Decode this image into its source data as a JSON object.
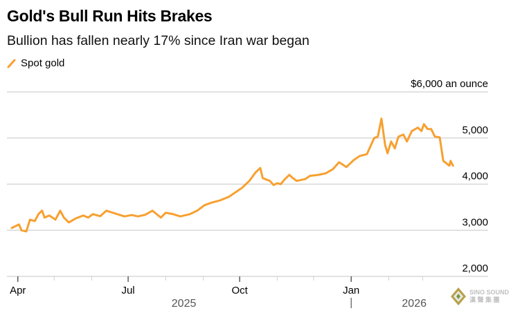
{
  "title": "Gold's Bull Run Hits Brakes",
  "subtitle": "Bullion has fallen nearly 17% since Iran war began",
  "watermark": {
    "line1": "SINO SOUND",
    "line2": "漢 聲 集 團"
  },
  "colors": {
    "series": "#f7a030",
    "grid": "#d0d0d0",
    "text": "#000000",
    "year_text": "#555555"
  },
  "chart_data": {
    "type": "line",
    "title": "Gold's Bull Run Hits Brakes",
    "subtitle": "Bullion has fallen nearly 17% since Iran war began",
    "xlabel": "",
    "ylabel": "$6,000 an ounce",
    "x_units": "days since 2025-04-01",
    "xlim": [
      -9,
      388
    ],
    "ylim": [
      2000,
      6000
    ],
    "grid": true,
    "legend": {
      "position": "top-left",
      "entries": [
        "Spot gold"
      ]
    },
    "y_ticks": [
      {
        "value": 2000,
        "label": "2,000"
      },
      {
        "value": 3000,
        "label": "3,000"
      },
      {
        "value": 4000,
        "label": "4,000"
      },
      {
        "value": 5000,
        "label": "5,000"
      },
      {
        "value": 6000,
        "label": "$6,000 an ounce"
      }
    ],
    "x_ticks": [
      {
        "value": 0,
        "label": "Apr"
      },
      {
        "value": 91,
        "label": "Jul"
      },
      {
        "value": 183,
        "label": "Oct"
      },
      {
        "value": 275,
        "label": "Jan"
      }
    ],
    "minor_x_ticks": [
      30,
      61,
      122,
      153,
      214,
      244,
      306,
      334
    ],
    "years": [
      {
        "label": "2025",
        "center": 137
      },
      {
        "label": "2026",
        "center": 327
      }
    ],
    "year_divider": 275,
    "series": [
      {
        "name": "Spot gold",
        "x": [
          -5,
          1,
          3,
          7,
          10,
          14,
          17,
          20,
          22,
          26,
          31,
          35,
          38,
          42,
          48,
          54,
          58,
          62,
          68,
          73,
          82,
          88,
          94,
          99,
          105,
          111,
          118,
          122,
          128,
          134,
          142,
          148,
          154,
          160,
          167,
          174,
          180,
          185,
          191,
          196,
          200,
          202,
          208,
          211,
          214,
          217,
          220,
          224,
          226,
          230,
          237,
          241,
          248,
          254,
          260,
          265,
          271,
          277,
          282,
          288,
          294,
          297,
          300,
          301,
          303,
          305,
          308,
          311,
          314,
          318,
          321,
          325,
          330,
          333,
          335,
          338,
          341,
          344,
          348,
          351,
          356,
          357,
          359
        ],
        "values": [
          3050,
          3125,
          3000,
          2975,
          3230,
          3200,
          3350,
          3425,
          3275,
          3320,
          3230,
          3425,
          3275,
          3170,
          3260,
          3320,
          3275,
          3350,
          3305,
          3425,
          3350,
          3300,
          3330,
          3300,
          3335,
          3425,
          3275,
          3380,
          3350,
          3300,
          3350,
          3425,
          3545,
          3600,
          3650,
          3725,
          3830,
          3920,
          4070,
          4250,
          4350,
          4130,
          4070,
          3980,
          4020,
          4000,
          4100,
          4200,
          4150,
          4070,
          4110,
          4180,
          4200,
          4235,
          4325,
          4475,
          4370,
          4520,
          4610,
          4650,
          5000,
          5030,
          5420,
          5225,
          4850,
          4670,
          4925,
          4775,
          5030,
          5075,
          4925,
          5150,
          5225,
          5150,
          5300,
          5195,
          5195,
          5030,
          5015,
          4505,
          4400,
          4505,
          4400
        ]
      }
    ]
  }
}
